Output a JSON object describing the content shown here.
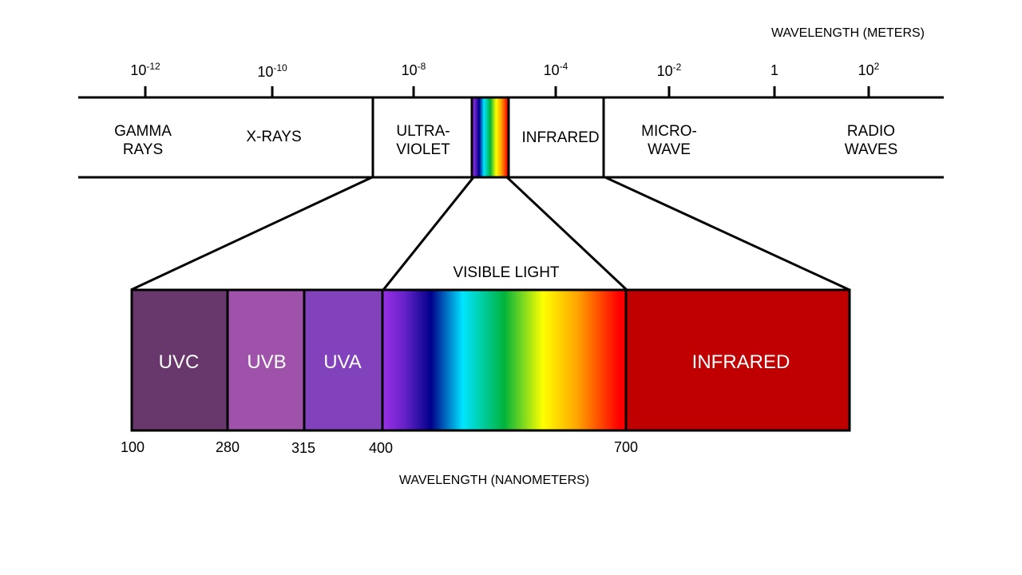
{
  "meter_scale": {
    "title": "WAVELENGTH (METERS)",
    "ticks": [
      {
        "base": "10",
        "exp": "-12"
      },
      {
        "base": "10",
        "exp": "-10"
      },
      {
        "base": "10",
        "exp": "-8"
      },
      {
        "base": "10",
        "exp": "-4"
      },
      {
        "base": "10",
        "exp": "-2"
      },
      {
        "base": "1",
        "exp": ""
      },
      {
        "base": "10",
        "exp": "2"
      }
    ]
  },
  "regions": {
    "gamma": [
      "GAMMA",
      "RAYS"
    ],
    "xrays": "X-RAYS",
    "ultraviolet": [
      "ULTRA-",
      "VIOLET"
    ],
    "infrared": "INFRARED",
    "microwave": [
      "MICRO-",
      "WAVE"
    ],
    "radio": [
      "RADIO",
      "WAVES"
    ]
  },
  "zoom": {
    "visible_title": "VISIBLE LIGHT",
    "bands": {
      "uvc": {
        "label": "UVC",
        "color": "#68386C"
      },
      "uvb": {
        "label": "UVB",
        "color": "#9E52AA"
      },
      "uva": {
        "label": "UVA",
        "color": "#8142BC"
      },
      "infrared": {
        "label": "INFRARED",
        "color": "#C00000"
      }
    },
    "nanometer_ticks": [
      "100",
      "280",
      "315",
      "400",
      "700"
    ],
    "axis_title": "WAVELENGTH (NANOMETERS)"
  },
  "spectrum_colors": [
    "#9B30E8",
    "#00008B",
    "#00E5FF",
    "#00B33C",
    "#FFFF00",
    "#FF8C00",
    "#FF0000"
  ]
}
